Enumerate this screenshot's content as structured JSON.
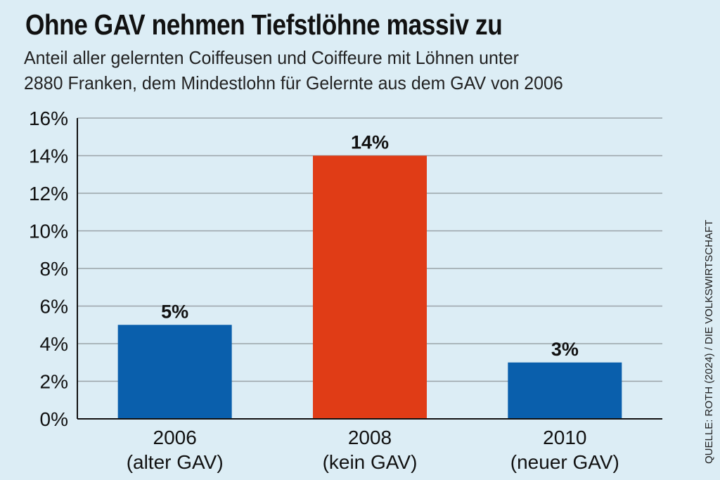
{
  "chart_data": {
    "type": "bar",
    "title": "Ohne GAV nehmen Tiefstlöhne massiv zu",
    "subtitle_lines": [
      "Anteil aller gelernten Coiffeusen und Coiffeure mit Löhnen unter",
      "2880 Franken, dem Mindestlohn für Gelernte aus dem GAV von 2006"
    ],
    "categories": [
      {
        "year": "2006",
        "note": "(alter GAV)"
      },
      {
        "year": "2008",
        "note": "(kein GAV)"
      },
      {
        "year": "2010",
        "note": "(neuer GAV)"
      }
    ],
    "values": [
      5,
      14,
      3
    ],
    "value_labels": [
      "5%",
      "14%",
      "3%"
    ],
    "bar_colors": [
      "#0a5fac",
      "#e03c16",
      "#0a5fac"
    ],
    "ylim": [
      0,
      16
    ],
    "y_ticks": [
      "0%",
      "2%",
      "4%",
      "6%",
      "8%",
      "10%",
      "12%",
      "14%",
      "16%"
    ],
    "xlabel": "",
    "ylabel": "",
    "grid": true,
    "source": "QUELLE: ROTH (2024) / DIE VOLKSWIRTSCHAFT"
  }
}
